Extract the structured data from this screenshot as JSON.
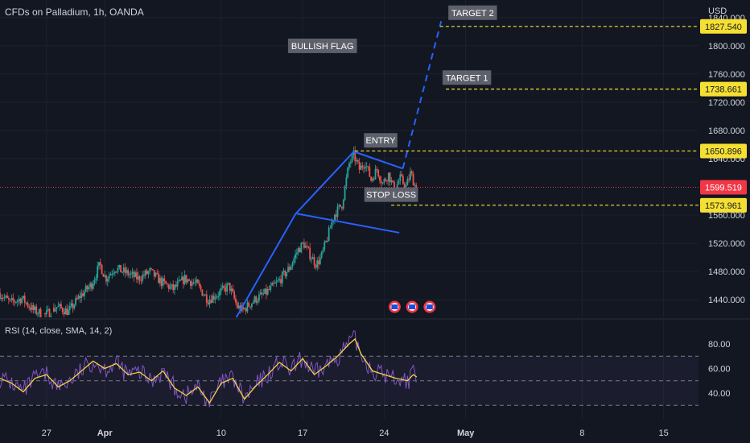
{
  "header": {
    "symbol_title": "CFDs on Palladium, 1h, OANDA",
    "currency": "USD"
  },
  "rsi": {
    "title": "RSI (14, close, SMA, 14, 2)",
    "ticks": [
      "80.00",
      "60.00",
      "40.00"
    ],
    "tick_values": [
      80,
      60,
      40
    ],
    "band_upper": 70,
    "band_lower": 30,
    "band_mid": 50
  },
  "chart_data": {
    "type": "candlestick",
    "symbol": "CFDs on Palladium",
    "timeframe": "1h",
    "source": "OANDA",
    "currency": "USD",
    "x_tick_labels": [
      "27",
      "Apr",
      "10",
      "17",
      "24",
      "May",
      "8",
      "15"
    ],
    "y_tick_labels": [
      "1840.000",
      "1800.000",
      "1760.000",
      "1720.000",
      "1680.000",
      "1640.000",
      "1560.000",
      "1520.000",
      "1480.000",
      "1440.000"
    ],
    "y_tick_values": [
      1840,
      1800,
      1760,
      1720,
      1680,
      1640,
      1560,
      1520,
      1480,
      1440
    ],
    "ylim": [
      1415,
      1865
    ],
    "x_day_range": [
      0,
      60
    ],
    "x_tick_days": [
      4,
      9,
      19,
      26,
      33,
      40,
      50,
      57
    ],
    "price_path": [
      [
        0,
        1450
      ],
      [
        1,
        1436
      ],
      [
        2,
        1442
      ],
      [
        3,
        1425
      ],
      [
        4,
        1418
      ],
      [
        5,
        1430
      ],
      [
        6,
        1423
      ],
      [
        7,
        1445
      ],
      [
        8,
        1462
      ],
      [
        8.7,
        1490
      ],
      [
        9.2,
        1470
      ],
      [
        10,
        1485
      ],
      [
        11,
        1478
      ],
      [
        12,
        1470
      ],
      [
        13,
        1480
      ],
      [
        14,
        1465
      ],
      [
        15,
        1455
      ],
      [
        16,
        1470
      ],
      [
        17,
        1462
      ],
      [
        18,
        1440
      ],
      [
        19,
        1450
      ],
      [
        19.8,
        1460
      ],
      [
        20.5,
        1430
      ],
      [
        21,
        1425
      ],
      [
        22,
        1440
      ],
      [
        23,
        1450
      ],
      [
        24,
        1465
      ],
      [
        25,
        1485
      ],
      [
        25.7,
        1510
      ],
      [
        26.2,
        1520
      ],
      [
        26.7,
        1505
      ],
      [
        27.3,
        1490
      ],
      [
        27.7,
        1500
      ],
      [
        28.2,
        1525
      ],
      [
        28.8,
        1560
      ],
      [
        29.5,
        1575
      ],
      [
        30.1,
        1632
      ],
      [
        30.5,
        1645
      ],
      [
        31,
        1625
      ],
      [
        31.5,
        1635
      ],
      [
        32,
        1610
      ],
      [
        32.5,
        1625
      ],
      [
        33,
        1605
      ],
      [
        33.5,
        1618
      ],
      [
        34,
        1595
      ],
      [
        34.5,
        1612
      ],
      [
        35,
        1600
      ],
      [
        35.4,
        1620
      ],
      [
        35.8,
        1600
      ]
    ],
    "rsi_values": [
      [
        0,
        52
      ],
      [
        1,
        48
      ],
      [
        2,
        41
      ],
      [
        3,
        52
      ],
      [
        4,
        55
      ],
      [
        5,
        45
      ],
      [
        6,
        50
      ],
      [
        7,
        58
      ],
      [
        8,
        66
      ],
      [
        9,
        60
      ],
      [
        10,
        64
      ],
      [
        11,
        55
      ],
      [
        12,
        57
      ],
      [
        13,
        50
      ],
      [
        14,
        58
      ],
      [
        15,
        44
      ],
      [
        16,
        38
      ],
      [
        17,
        45
      ],
      [
        18,
        32
      ],
      [
        19,
        48
      ],
      [
        20,
        52
      ],
      [
        21,
        35
      ],
      [
        22,
        46
      ],
      [
        23,
        55
      ],
      [
        24,
        65
      ],
      [
        25,
        58
      ],
      [
        26,
        68
      ],
      [
        27,
        55
      ],
      [
        28,
        62
      ],
      [
        29,
        70
      ],
      [
        30,
        80
      ],
      [
        30.5,
        84
      ],
      [
        31,
        72
      ],
      [
        32,
        58
      ],
      [
        33,
        55
      ],
      [
        34,
        52
      ],
      [
        35,
        50
      ],
      [
        35.5,
        55
      ],
      [
        35.8,
        53
      ]
    ],
    "current_price": 1599.519,
    "current_price_label": "1599.519",
    "pattern_label": "BULLISH FLAG",
    "levels": [
      {
        "name": "TARGET 2",
        "value": 1827.54,
        "label": "1827.540",
        "start_day": 37.8
      },
      {
        "name": "TARGET 1",
        "value": 1738.661,
        "label": "1738.661",
        "start_day": 38.3
      },
      {
        "name": "ENTRY",
        "value": 1650.896,
        "label": "1650.896",
        "start_day": 30.5
      },
      {
        "name": "STOP LOSS",
        "value": 1573.961,
        "label": "1573.961",
        "start_day": 33.6
      }
    ],
    "pole": [
      [
        20.3,
        1415
      ],
      [
        25.4,
        1562
      ],
      [
        30.4,
        1650
      ]
    ],
    "flag_upper": [
      [
        30.4,
        1650
      ],
      [
        34.6,
        1626
      ]
    ],
    "flag_lower": [
      [
        25.5,
        1562
      ],
      [
        34.3,
        1535
      ]
    ],
    "projection": [
      [
        34.6,
        1626
      ],
      [
        37.9,
        1835
      ]
    ],
    "event_flag_days": [
      33.9,
      35.4,
      36.9
    ],
    "rsi_ylim": [
      19,
      99
    ]
  },
  "colors": {
    "background": "#131722",
    "grid": "#1e222d",
    "text": "#d1d4dc",
    "up": "#26a69a",
    "down": "#ef5350",
    "pattern": "#2962ff",
    "level": "#f5e032",
    "price_line": "#f23645",
    "rsi_line": "#7e57c2",
    "rsi_ma": "#f5d142",
    "rsi_band": "#7e57c2",
    "label_bg": "#5d606b"
  }
}
